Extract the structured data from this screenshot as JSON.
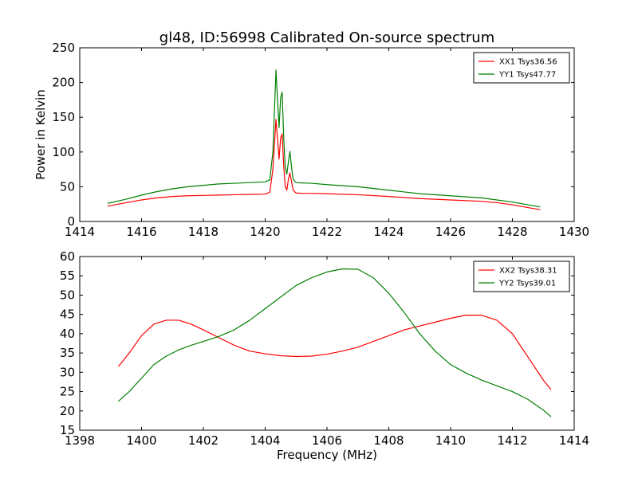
{
  "figure": {
    "title": "gl48, ID:56998 Calibrated On-source spectrum"
  },
  "colors": {
    "xx": "#ff0000",
    "yy": "#008000",
    "axes": "#000000",
    "background": "#ffffff"
  },
  "chart_data": [
    {
      "type": "line",
      "title": "gl48, ID:56998 Calibrated On-source spectrum",
      "xlabel": "",
      "ylabel": "Power in Kelvin",
      "xlim": [
        1414,
        1430
      ],
      "ylim": [
        0,
        250
      ],
      "xticks": [
        1414,
        1416,
        1418,
        1420,
        1422,
        1424,
        1426,
        1428,
        1430
      ],
      "yticks": [
        0,
        50,
        100,
        150,
        200,
        250
      ],
      "grid": false,
      "legend_position": "top-right",
      "series": [
        {
          "name": "XX1 Tsys36.56",
          "color": "#ff0000",
          "x": [
            1414.9,
            1415.5,
            1416.0,
            1416.5,
            1417.0,
            1417.5,
            1418.0,
            1418.5,
            1419.0,
            1419.5,
            1420.0,
            1420.15,
            1420.25,
            1420.35,
            1420.4,
            1420.45,
            1420.5,
            1420.55,
            1420.6,
            1420.65,
            1420.7,
            1420.75,
            1420.8,
            1420.85,
            1420.9,
            1420.95,
            1421.0,
            1421.2,
            1421.5,
            1422.0,
            1423.0,
            1424.0,
            1425.0,
            1426.0,
            1427.0,
            1427.5,
            1428.0,
            1428.5,
            1428.9
          ],
          "y": [
            22,
            27,
            31,
            34,
            36,
            37,
            37.5,
            38,
            38.5,
            39,
            39.5,
            42,
            75,
            147,
            118,
            90,
            120,
            126,
            80,
            50,
            45,
            60,
            70,
            58,
            46,
            43,
            41,
            40.5,
            40.5,
            40,
            38.5,
            36,
            33,
            31,
            29,
            27,
            24,
            20,
            17
          ]
        },
        {
          "name": "YY1 Tsys47.77",
          "color": "#008000",
          "x": [
            1414.9,
            1415.5,
            1416.0,
            1416.5,
            1417.0,
            1417.5,
            1418.0,
            1418.5,
            1419.0,
            1419.5,
            1420.0,
            1420.15,
            1420.25,
            1420.35,
            1420.4,
            1420.45,
            1420.5,
            1420.55,
            1420.6,
            1420.65,
            1420.7,
            1420.75,
            1420.8,
            1420.85,
            1420.9,
            1420.95,
            1421.0,
            1421.2,
            1421.5,
            1422.0,
            1423.0,
            1424.0,
            1425.0,
            1426.0,
            1427.0,
            1427.5,
            1428.0,
            1428.5,
            1428.9
          ],
          "y": [
            26,
            32,
            38,
            43,
            47,
            50,
            52,
            54,
            55,
            56,
            57,
            60,
            100,
            218,
            175,
            135,
            178,
            186,
            120,
            78,
            68,
            85,
            101,
            80,
            62,
            58,
            56,
            55.5,
            55,
            53,
            50,
            45,
            40,
            37,
            34,
            31,
            28,
            24,
            21
          ]
        }
      ]
    },
    {
      "type": "line",
      "title": "",
      "xlabel": "Frequency (MHz)",
      "ylabel": "",
      "xlim": [
        1398,
        1414
      ],
      "ylim": [
        15,
        60
      ],
      "xticks": [
        1398,
        1400,
        1402,
        1404,
        1406,
        1408,
        1410,
        1412,
        1414
      ],
      "yticks": [
        15,
        20,
        25,
        30,
        35,
        40,
        45,
        50,
        55,
        60
      ],
      "grid": false,
      "legend_position": "top-right",
      "series": [
        {
          "name": "XX2 Tsys38.31",
          "color": "#ff0000",
          "x": [
            1399.25,
            1399.6,
            1400.0,
            1400.4,
            1400.8,
            1401.2,
            1401.6,
            1402.0,
            1402.5,
            1403.0,
            1403.5,
            1404.0,
            1404.5,
            1405.0,
            1405.5,
            1406.0,
            1406.5,
            1407.0,
            1407.5,
            1408.0,
            1408.5,
            1409.0,
            1409.5,
            1410.0,
            1410.5,
            1411.0,
            1411.5,
            1412.0,
            1412.5,
            1413.0,
            1413.25
          ],
          "y": [
            31.5,
            35,
            39.5,
            42.5,
            43.5,
            43.5,
            42.5,
            41,
            39,
            37,
            35.5,
            34.8,
            34.3,
            34.1,
            34.2,
            34.7,
            35.5,
            36.5,
            38,
            39.5,
            41,
            42,
            43,
            44,
            44.8,
            44.8,
            43.5,
            40,
            34,
            28,
            25.5
          ]
        },
        {
          "name": "YY2 Tsys39.01",
          "color": "#008000",
          "x": [
            1399.25,
            1399.6,
            1400.0,
            1400.4,
            1400.8,
            1401.2,
            1401.6,
            1402.0,
            1402.5,
            1403.0,
            1403.5,
            1404.0,
            1404.5,
            1405.0,
            1405.5,
            1406.0,
            1406.5,
            1407.0,
            1407.5,
            1408.0,
            1408.5,
            1409.0,
            1409.5,
            1410.0,
            1410.5,
            1411.0,
            1411.5,
            1412.0,
            1412.5,
            1413.0,
            1413.25
          ],
          "y": [
            22.5,
            25,
            28.5,
            32,
            34.2,
            35.8,
            37,
            38,
            39.3,
            41,
            43.5,
            46.5,
            49.5,
            52.5,
            54.5,
            56,
            56.8,
            56.7,
            54.5,
            50.5,
            45.5,
            40,
            35.5,
            32,
            29.8,
            28,
            26.5,
            25,
            23,
            20.2,
            18.5
          ]
        }
      ]
    }
  ]
}
